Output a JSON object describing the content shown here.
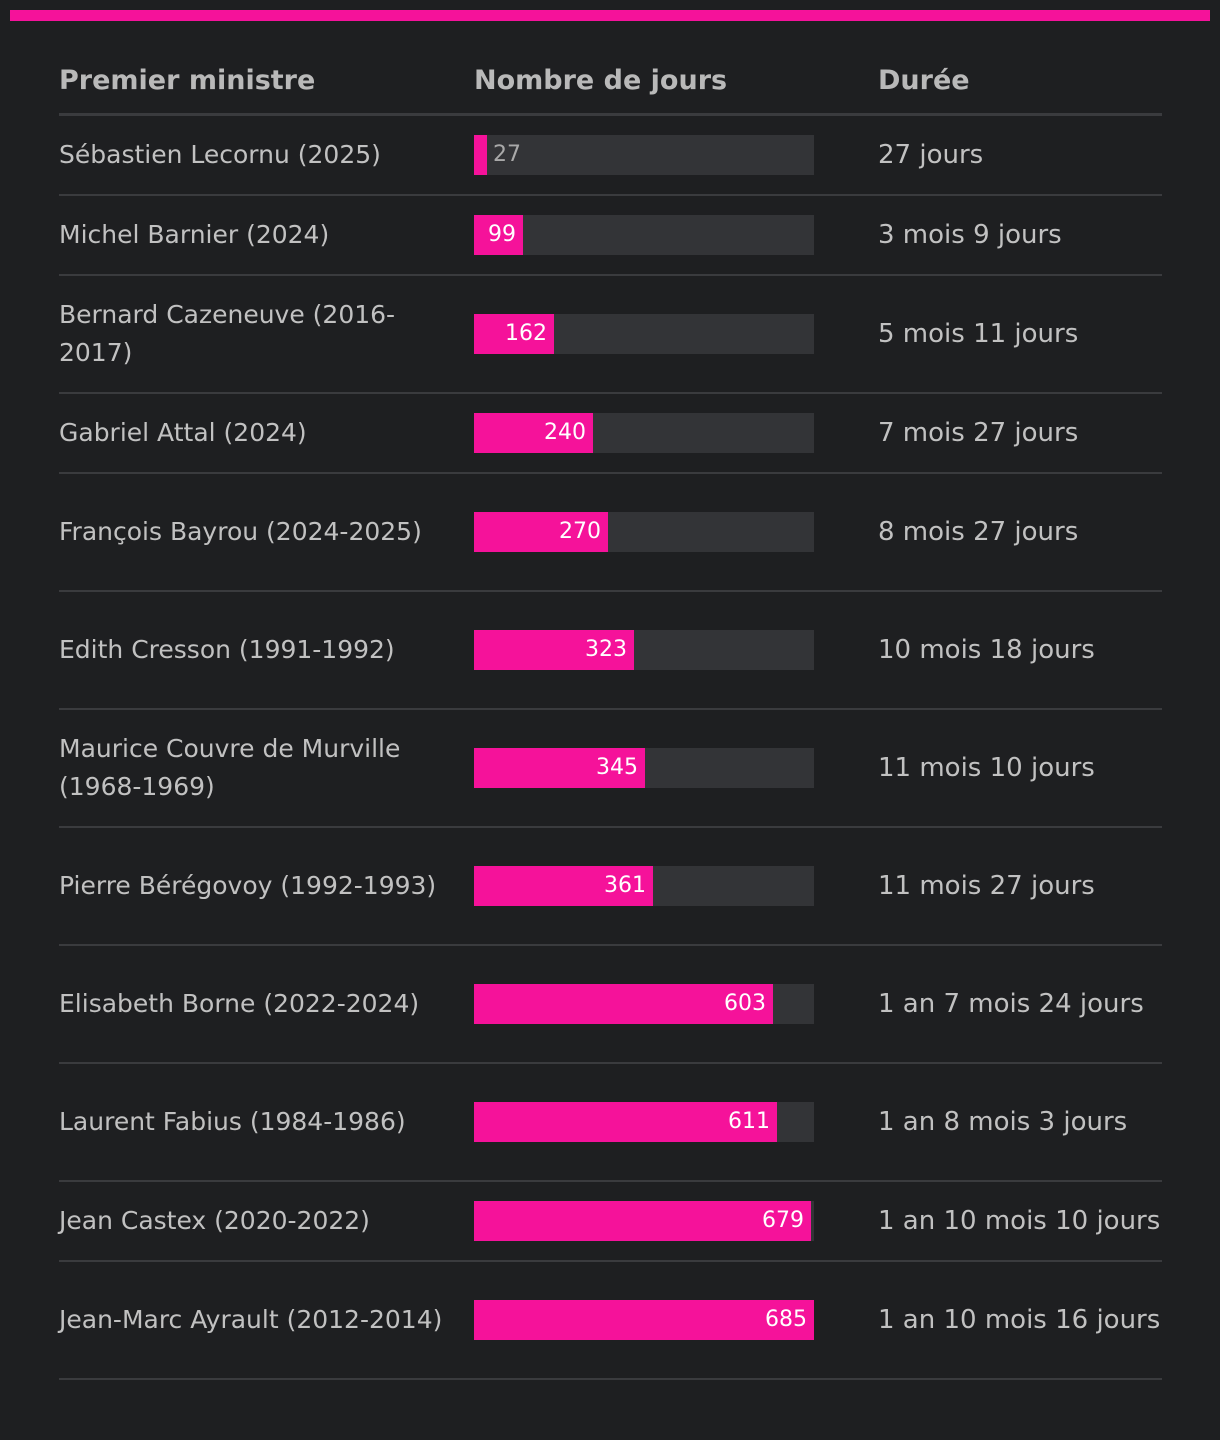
{
  "colors": {
    "accent": "#f5129a",
    "background": "#1e1f21",
    "track": "#333437",
    "divider": "#3a3b3e"
  },
  "table": {
    "headers": {
      "name": "Premier ministre",
      "days": "Nombre de jours",
      "duration": "Durée"
    }
  },
  "chart_data": {
    "type": "bar",
    "orientation": "horizontal",
    "title": "",
    "xlabel": "Nombre de jours",
    "xlim": [
      0,
      685
    ],
    "categories": [
      "Sébastien Lecornu (2025)",
      "Michel Barnier (2024)",
      "Bernard Cazeneuve (2016-2017)",
      "Gabriel Attal (2024)",
      "François Bayrou (2024-2025)",
      "Edith Cresson (1991-1992)",
      "Maurice Couvre de Murville (1968-1969)",
      "Pierre Bérégovoy (1992-1993)",
      "Elisabeth Borne (2022-2024)",
      "Laurent Fabius (1984-1986)",
      "Jean Castex (2020-2022)",
      "Jean-Marc Ayrault (2012-2014)"
    ],
    "values": [
      27,
      99,
      162,
      240,
      270,
      323,
      345,
      361,
      603,
      611,
      679,
      685
    ],
    "durations": [
      "27 jours",
      "3 mois 9 jours",
      "5 mois 11 jours",
      "7 mois 27 jours",
      "8 mois 27 jours",
      "10 mois 18 jours",
      "11 mois 10 jours",
      "11 mois 27 jours",
      "1 an 7 mois 24 jours",
      "1 an 8 mois 3 jours",
      "1 an 10 mois 10 jours",
      "1 an 10 mois 16 jours"
    ]
  }
}
